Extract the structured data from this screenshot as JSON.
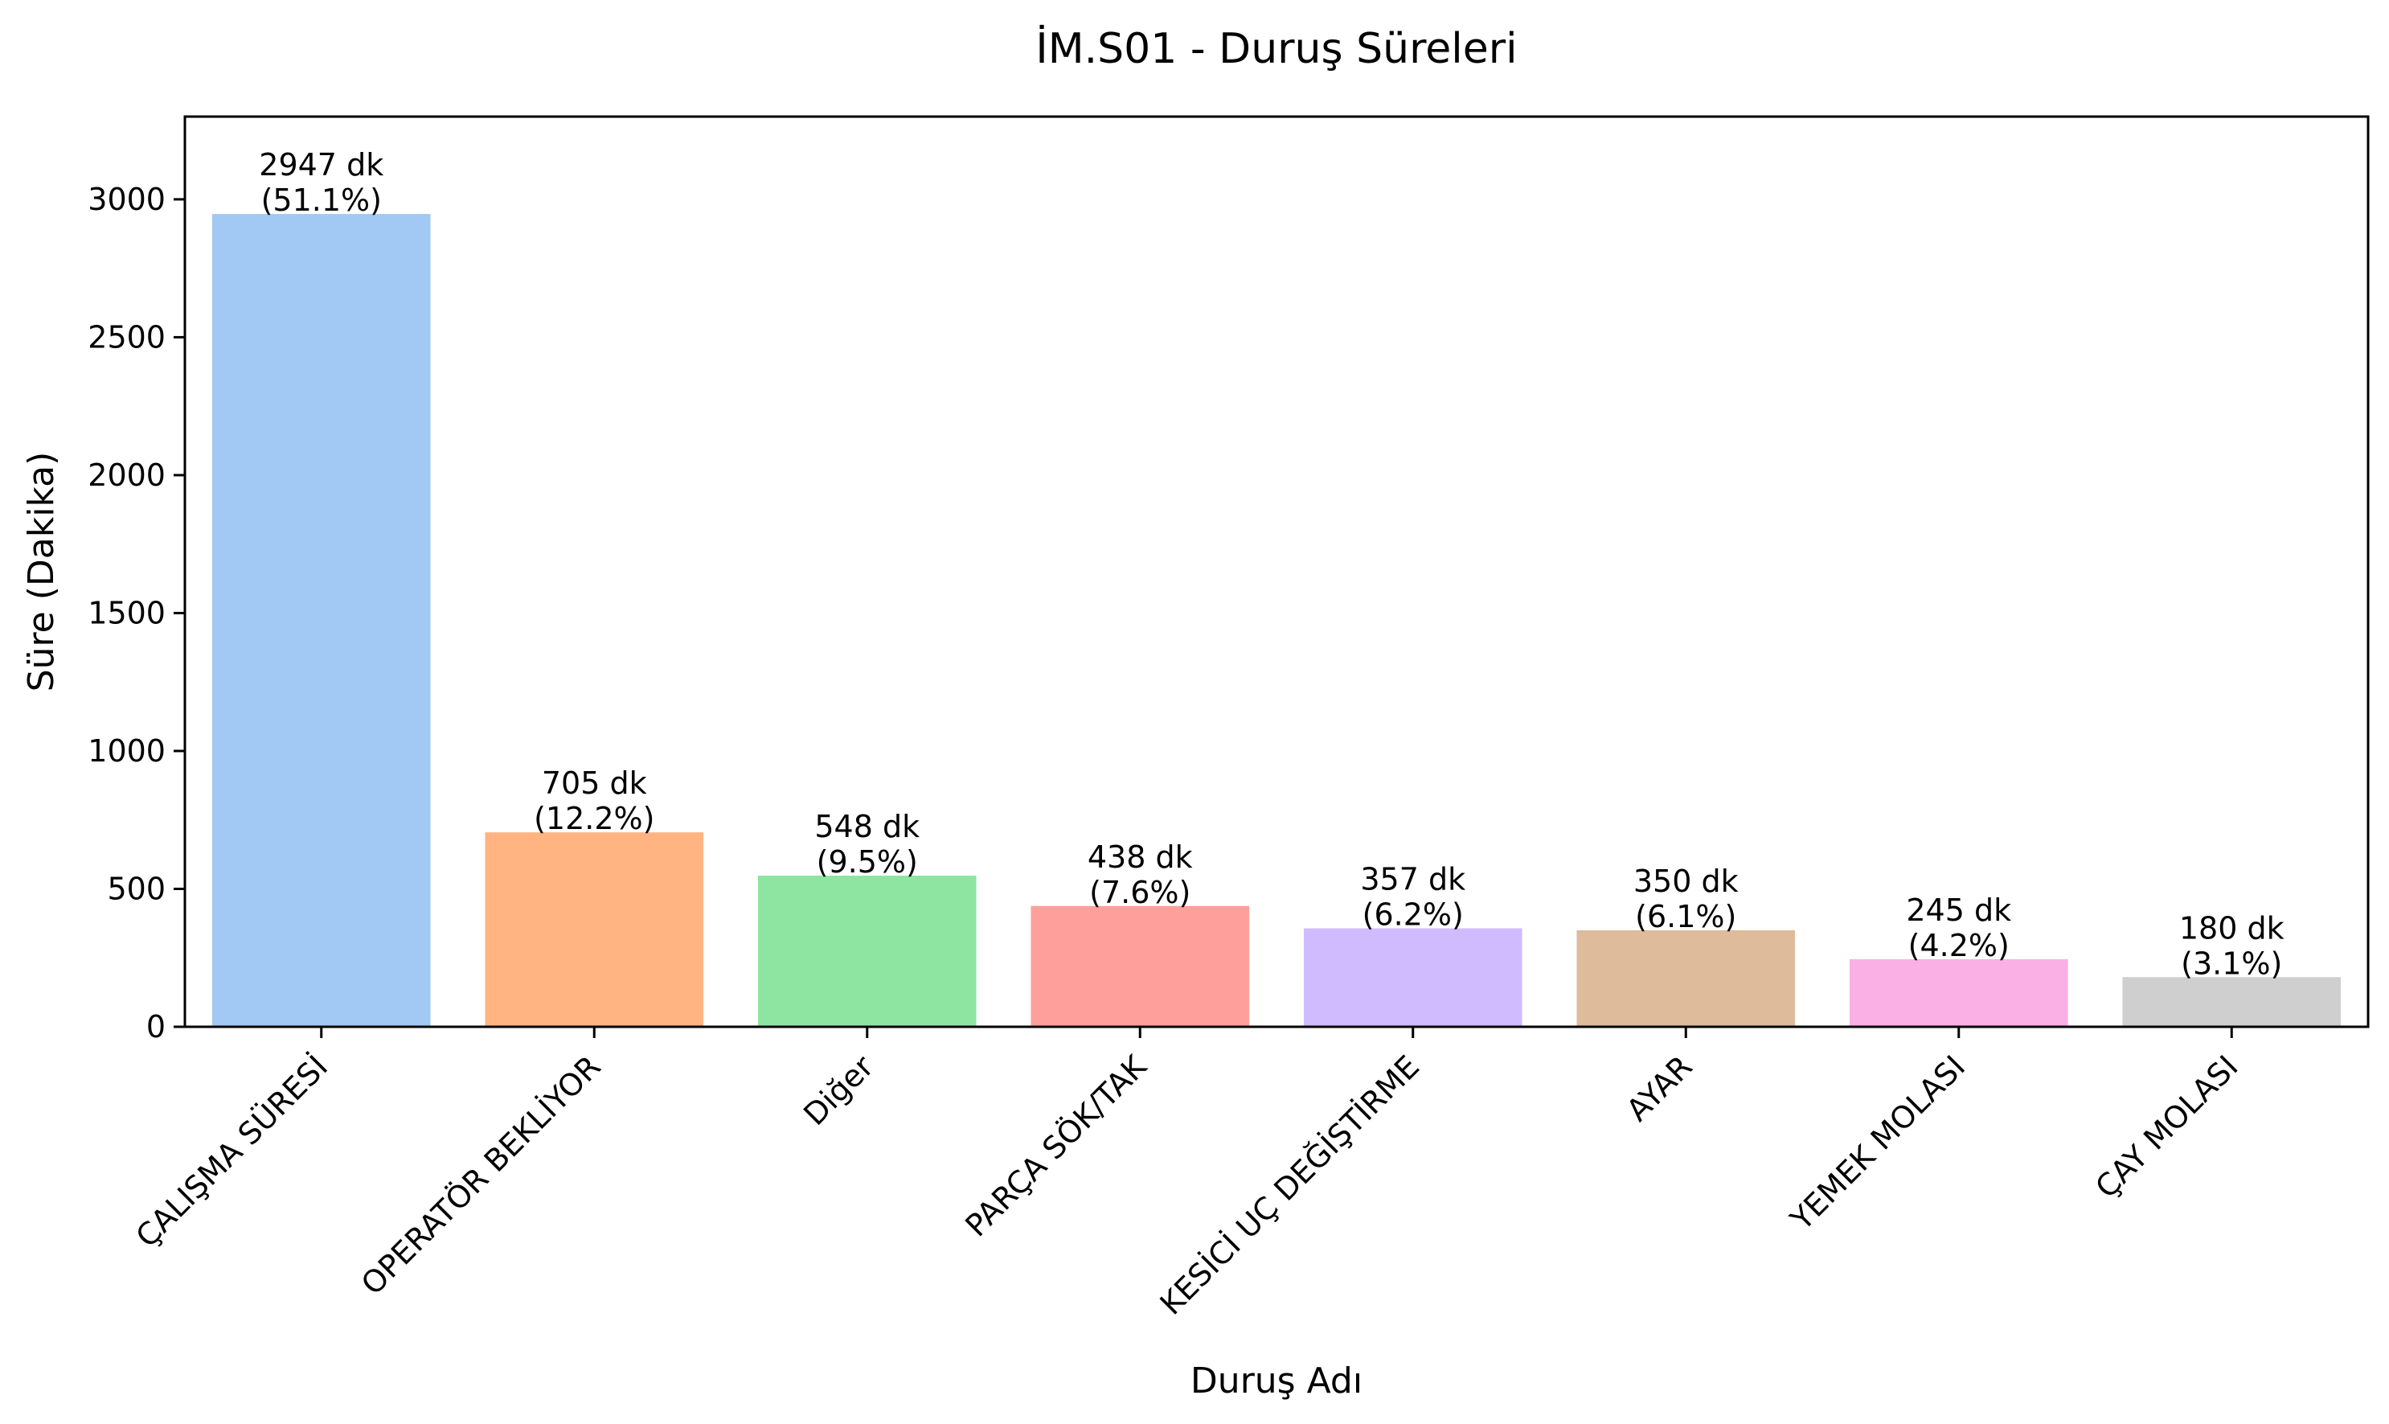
{
  "chart_data": {
    "type": "bar",
    "title": "İM.S01 - Duruş Süreleri",
    "xlabel": "Duruş Adı",
    "ylabel": "Süre (Dakika)",
    "ylim": [
      0,
      3300
    ],
    "yticks": [
      0,
      500,
      1000,
      1500,
      2000,
      2500,
      3000
    ],
    "grid": false,
    "legend": "none",
    "categories": [
      "ÇALIŞMA SÜRESİ",
      "OPERATÖR BEKLİYOR",
      "Diğer",
      "PARÇA SÖK/TAK",
      "KESİCİ UÇ DEĞİŞTİRME",
      "AYAR",
      "YEMEK MOLASI",
      "ÇAY MOLASI"
    ],
    "values": [
      2947,
      705,
      548,
      438,
      357,
      350,
      245,
      180
    ],
    "value_labels": [
      "2947 dk",
      "705 dk",
      "548 dk",
      "438 dk",
      "357 dk",
      "350 dk",
      "245 dk",
      "180 dk"
    ],
    "percent_labels": [
      "(51.1%)",
      "(12.2%)",
      "(9.5%)",
      "(7.6%)",
      "(6.2%)",
      "(6.1%)",
      "(4.2%)",
      "(3.1%)"
    ],
    "colors": [
      "#a1c9f4",
      "#ffb482",
      "#8de5a1",
      "#ff9f9b",
      "#d0bbff",
      "#debb9b",
      "#fab0e4",
      "#cfcfcf"
    ]
  }
}
